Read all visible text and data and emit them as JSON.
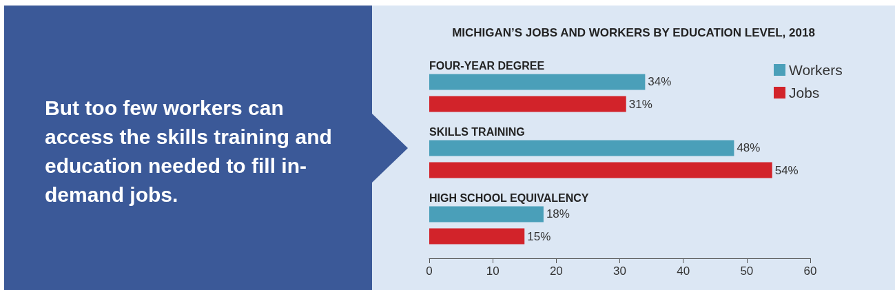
{
  "chart_data": {
    "type": "bar",
    "orientation": "horizontal",
    "title": "MICHIGAN’S JOBS AND WORKERS BY EDUCATION LEVEL, 2018",
    "subtitle": "But too few workers can access the skills training and education needed to fill in-demand jobs.",
    "categories": [
      "FOUR-YEAR DEGREE",
      "SKILLS TRAINING",
      "HIGH SCHOOL EQUIVALENCY"
    ],
    "series": [
      {
        "name": "Workers",
        "color": "#4a9fb9",
        "values": [
          34,
          48,
          18
        ],
        "value_labels": [
          "34%",
          "48%",
          "18%"
        ]
      },
      {
        "name": "Jobs",
        "color": "#d2232a",
        "values": [
          31,
          54,
          15
        ],
        "value_labels": [
          "31%",
          "54%",
          "15%"
        ]
      }
    ],
    "xlim": [
      0,
      60
    ],
    "xticks": [
      0,
      10,
      20,
      30,
      40,
      50,
      60
    ],
    "legend": "top right"
  }
}
